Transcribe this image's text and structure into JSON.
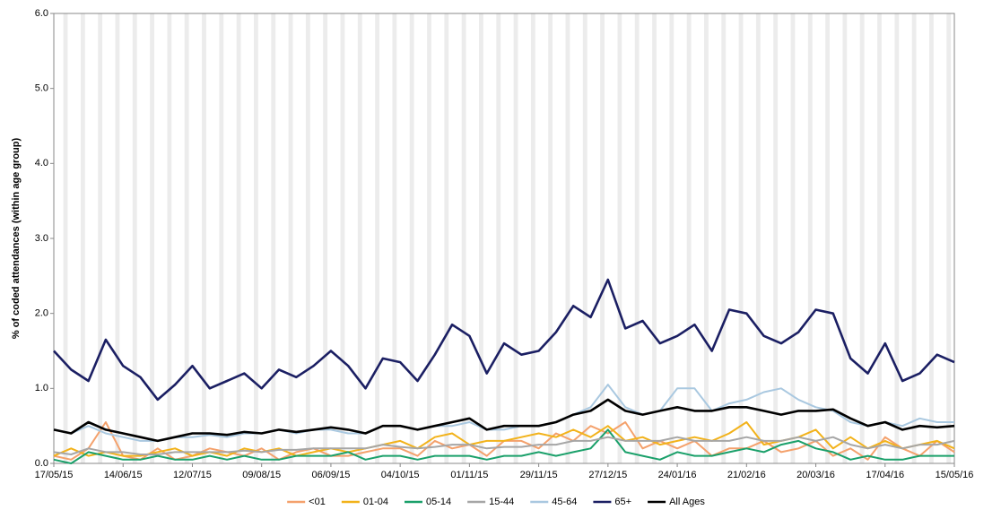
{
  "chart_data": {
    "type": "line",
    "y_label": "% of coded attendances (within age group)",
    "x": [
      "17/05/15",
      "24/05/15",
      "31/05/15",
      "07/06/15",
      "14/06/15",
      "21/06/15",
      "28/06/15",
      "05/07/15",
      "12/07/15",
      "19/07/15",
      "26/07/15",
      "02/08/15",
      "09/08/15",
      "16/08/15",
      "23/08/15",
      "30/08/15",
      "06/09/15",
      "13/09/15",
      "20/09/15",
      "27/09/15",
      "04/10/15",
      "11/10/15",
      "18/10/15",
      "25/10/15",
      "01/11/15",
      "08/11/15",
      "15/11/15",
      "22/11/15",
      "29/11/15",
      "06/12/15",
      "13/12/15",
      "20/12/15",
      "27/12/15",
      "03/01/16",
      "10/01/16",
      "17/01/16",
      "24/01/16",
      "31/01/16",
      "07/02/16",
      "14/02/16",
      "21/02/16",
      "28/02/16",
      "06/03/16",
      "13/03/16",
      "20/03/16",
      "27/03/16",
      "03/04/16",
      "10/04/16",
      "17/04/16",
      "24/04/16",
      "01/05/16",
      "08/05/16",
      "15/05/16"
    ],
    "xticks": [
      "17/05/15",
      "14/06/15",
      "12/07/15",
      "09/08/15",
      "06/09/15",
      "04/10/15",
      "01/11/15",
      "29/11/15",
      "27/12/15",
      "24/01/16",
      "21/02/16",
      "20/03/16",
      "17/04/16",
      "15/05/16"
    ],
    "ylim": [
      0,
      6
    ],
    "yticks": [
      {
        "value": 0,
        "label": "0.0"
      },
      {
        "value": 1,
        "label": "1.0"
      },
      {
        "value": 2,
        "label": "2.0"
      },
      {
        "value": 3,
        "label": "3.0"
      },
      {
        "value": 4,
        "label": "4.0"
      },
      {
        "value": 5,
        "label": "5.0"
      },
      {
        "value": 6,
        "label": "6.0"
      }
    ],
    "legend": "bottom",
    "series": [
      {
        "name": "<01",
        "color": "#f4a16c",
        "values": [
          0.1,
          0.05,
          0.2,
          0.55,
          0.1,
          0.05,
          0.2,
          0.05,
          0.1,
          0.2,
          0.15,
          0.1,
          0.2,
          0.05,
          0.15,
          0.2,
          0.1,
          0.1,
          0.15,
          0.2,
          0.2,
          0.1,
          0.3,
          0.2,
          0.25,
          0.1,
          0.3,
          0.3,
          0.2,
          0.4,
          0.3,
          0.5,
          0.4,
          0.55,
          0.2,
          0.3,
          0.2,
          0.3,
          0.1,
          0.2,
          0.2,
          0.3,
          0.15,
          0.2,
          0.3,
          0.1,
          0.2,
          0.05,
          0.35,
          0.2,
          0.1,
          0.3,
          0.15
        ]
      },
      {
        "name": "01-04",
        "color": "#f2b21a",
        "values": [
          0.1,
          0.2,
          0.1,
          0.15,
          0.1,
          0.1,
          0.15,
          0.2,
          0.1,
          0.15,
          0.1,
          0.2,
          0.15,
          0.2,
          0.1,
          0.15,
          0.2,
          0.15,
          0.2,
          0.25,
          0.3,
          0.2,
          0.35,
          0.4,
          0.25,
          0.3,
          0.3,
          0.35,
          0.4,
          0.35,
          0.45,
          0.35,
          0.5,
          0.3,
          0.35,
          0.25,
          0.3,
          0.35,
          0.3,
          0.4,
          0.55,
          0.25,
          0.3,
          0.35,
          0.45,
          0.2,
          0.35,
          0.2,
          0.3,
          0.2,
          0.25,
          0.3,
          0.2
        ]
      },
      {
        "name": "05-14",
        "color": "#1aa06a",
        "values": [
          0.05,
          0,
          0.15,
          0.1,
          0.05,
          0.05,
          0.1,
          0.05,
          0.05,
          0.1,
          0.05,
          0.1,
          0.05,
          0.05,
          0.1,
          0.1,
          0.1,
          0.15,
          0.05,
          0.1,
          0.1,
          0.05,
          0.1,
          0.1,
          0.1,
          0.05,
          0.1,
          0.1,
          0.15,
          0.1,
          0.15,
          0.2,
          0.45,
          0.15,
          0.1,
          0.05,
          0.15,
          0.1,
          0.1,
          0.15,
          0.2,
          0.15,
          0.25,
          0.3,
          0.2,
          0.15,
          0.05,
          0.1,
          0.05,
          0.05,
          0.1,
          0.1,
          0.1
        ]
      },
      {
        "name": "15-44",
        "color": "#a6a6a6",
        "values": [
          0.15,
          0.12,
          0.2,
          0.15,
          0.15,
          0.12,
          0.12,
          0.15,
          0.15,
          0.15,
          0.15,
          0.17,
          0.15,
          0.18,
          0.18,
          0.2,
          0.2,
          0.2,
          0.2,
          0.25,
          0.22,
          0.2,
          0.22,
          0.25,
          0.25,
          0.2,
          0.22,
          0.22,
          0.25,
          0.25,
          0.3,
          0.3,
          0.35,
          0.3,
          0.3,
          0.3,
          0.35,
          0.3,
          0.3,
          0.3,
          0.35,
          0.3,
          0.3,
          0.35,
          0.3,
          0.35,
          0.25,
          0.2,
          0.25,
          0.2,
          0.25,
          0.25,
          0.3
        ]
      },
      {
        "name": "45-64",
        "color": "#a9c8e0",
        "values": [
          0.45,
          0.4,
          0.5,
          0.4,
          0.35,
          0.3,
          0.3,
          0.35,
          0.35,
          0.38,
          0.35,
          0.4,
          0.4,
          0.45,
          0.4,
          0.45,
          0.45,
          0.4,
          0.4,
          0.5,
          0.5,
          0.45,
          0.5,
          0.5,
          0.55,
          0.45,
          0.45,
          0.5,
          0.5,
          0.55,
          0.65,
          0.75,
          1.05,
          0.75,
          0.65,
          0.7,
          1.0,
          1.0,
          0.7,
          0.8,
          0.85,
          0.95,
          1.0,
          0.85,
          0.75,
          0.7,
          0.55,
          0.5,
          0.55,
          0.5,
          0.6,
          0.55,
          0.55
        ]
      },
      {
        "name": "65+",
        "color": "#1b1f63",
        "values": [
          1.5,
          1.25,
          1.1,
          1.65,
          1.3,
          1.15,
          0.85,
          1.05,
          1.3,
          1.0,
          1.1,
          1.2,
          1.0,
          1.25,
          1.15,
          1.3,
          1.5,
          1.3,
          1.0,
          1.4,
          1.35,
          1.1,
          1.45,
          1.85,
          1.7,
          1.2,
          1.6,
          1.45,
          1.5,
          1.75,
          2.1,
          1.95,
          2.45,
          1.8,
          1.9,
          1.6,
          1.7,
          1.85,
          1.5,
          2.05,
          2.0,
          1.7,
          1.6,
          1.75,
          2.05,
          2.0,
          1.4,
          1.2,
          1.6,
          1.1,
          1.2,
          1.45,
          1.35
        ]
      },
      {
        "name": "All Ages",
        "color": "#000000",
        "values": [
          0.45,
          0.4,
          0.55,
          0.45,
          0.4,
          0.35,
          0.3,
          0.35,
          0.4,
          0.4,
          0.38,
          0.42,
          0.4,
          0.45,
          0.42,
          0.45,
          0.48,
          0.45,
          0.4,
          0.5,
          0.5,
          0.45,
          0.5,
          0.55,
          0.6,
          0.45,
          0.5,
          0.5,
          0.5,
          0.55,
          0.65,
          0.7,
          0.85,
          0.7,
          0.65,
          0.7,
          0.75,
          0.7,
          0.7,
          0.75,
          0.75,
          0.7,
          0.65,
          0.7,
          0.7,
          0.72,
          0.6,
          0.5,
          0.55,
          0.45,
          0.5,
          0.48,
          0.5
        ]
      }
    ]
  }
}
